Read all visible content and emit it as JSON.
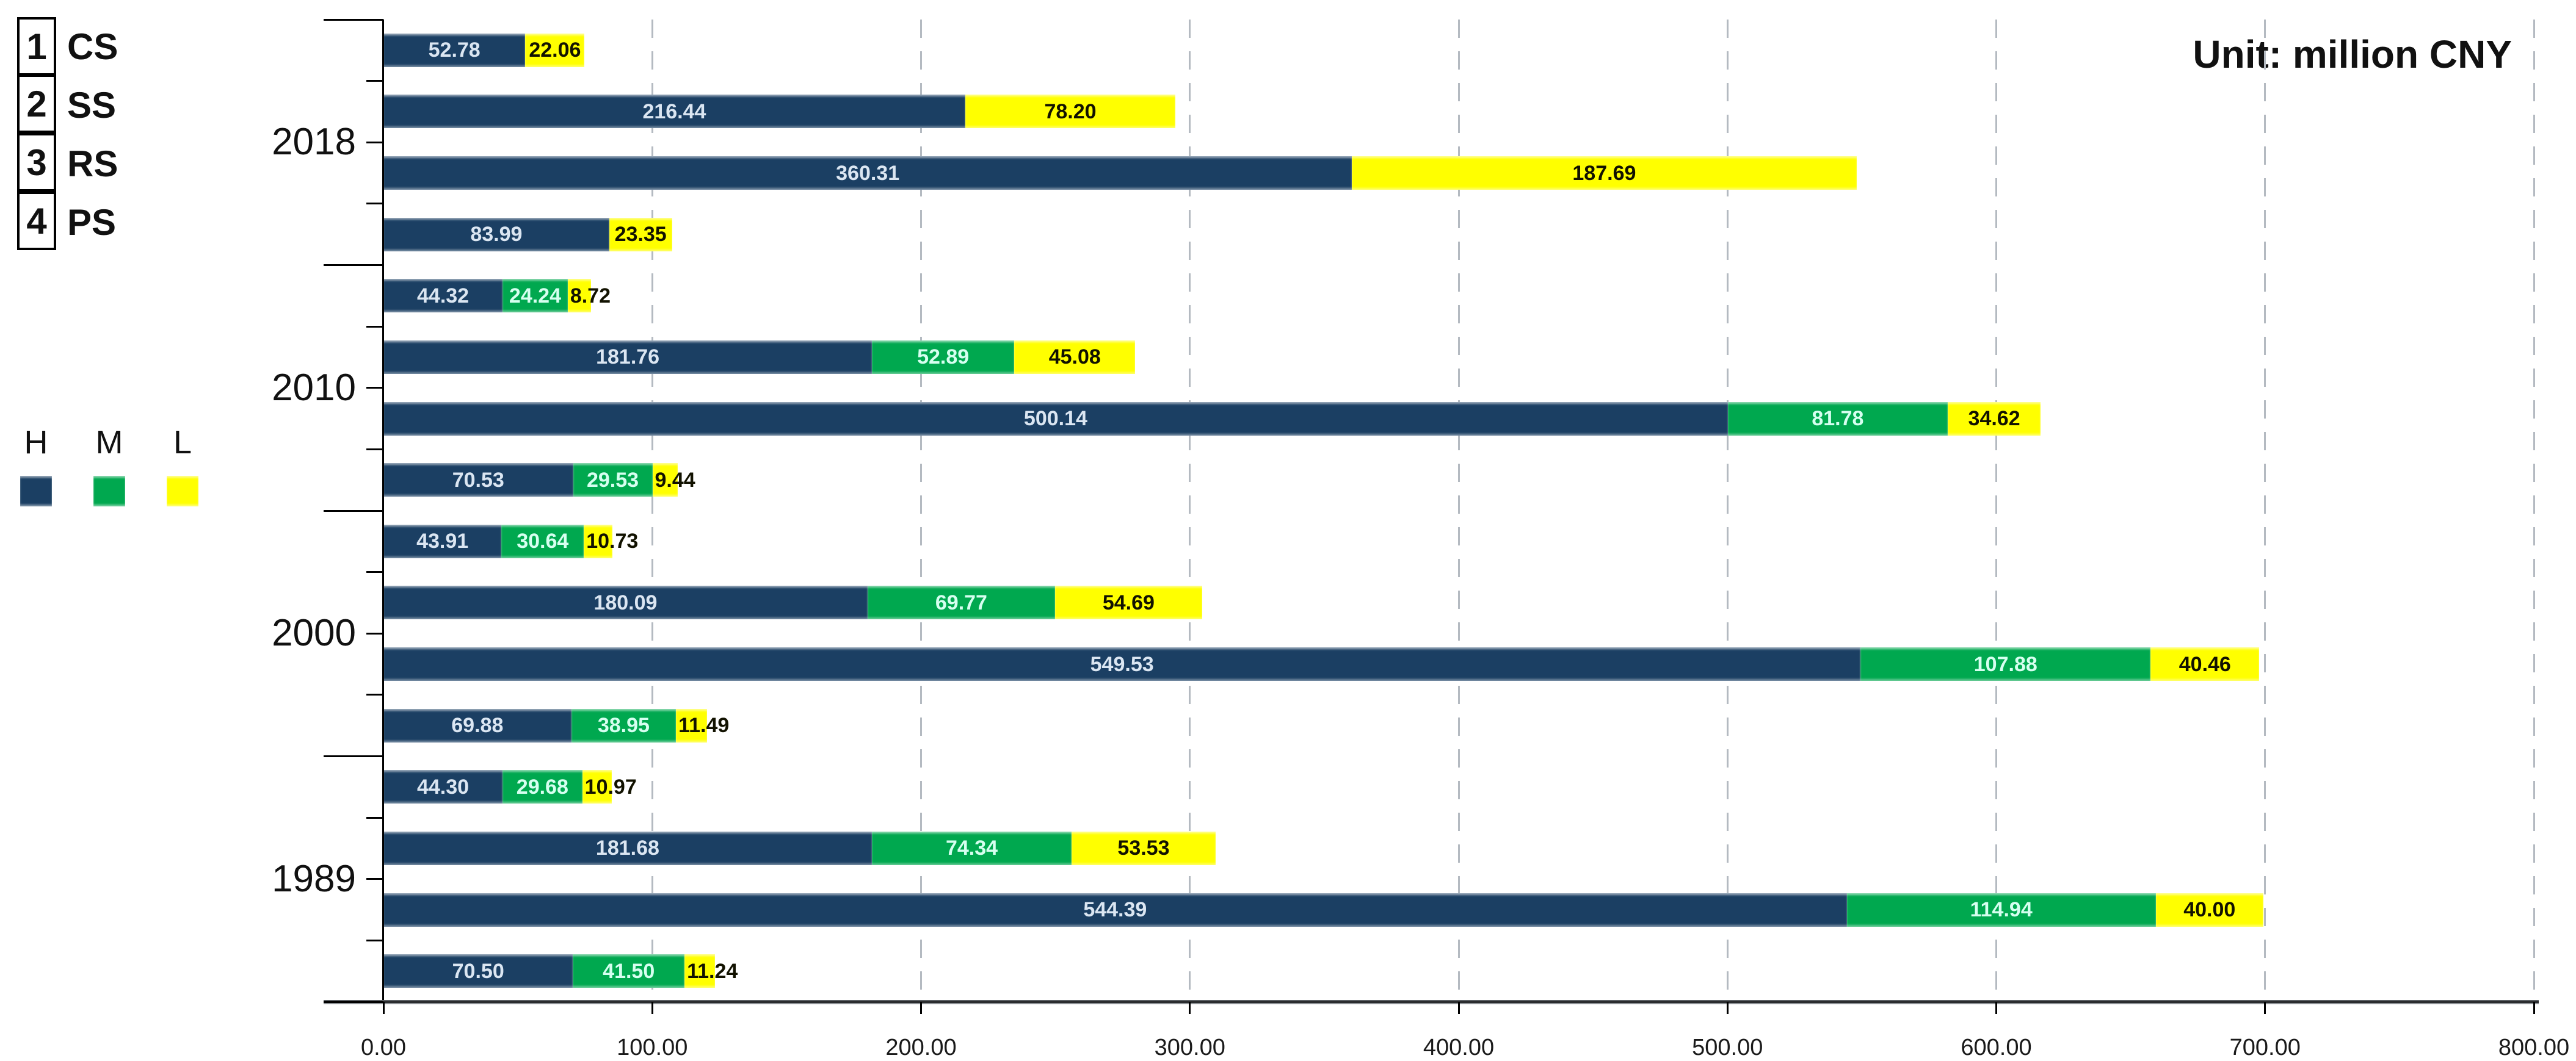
{
  "header": {
    "unit_label": "Unit: million CNY"
  },
  "legend_table": {
    "items": [
      {
        "num": "1",
        "label": "CS"
      },
      {
        "num": "2",
        "label": "SS"
      },
      {
        "num": "3",
        "label": "RS"
      },
      {
        "num": "4",
        "label": "PS"
      }
    ]
  },
  "series_legend": {
    "items": [
      {
        "label": "H",
        "color": "#1b3f63"
      },
      {
        "label": "M",
        "color": "#00a84f"
      },
      {
        "label": "L",
        "color": "#ffff00"
      }
    ]
  },
  "chart_data": {
    "type": "bar",
    "orientation": "horizontal",
    "stacked": true,
    "unit": "million CNY",
    "series_names": [
      "H",
      "M",
      "L"
    ],
    "series_colors": {
      "H": "#1b3f63",
      "M": "#00a84f",
      "L": "#ffff00"
    },
    "value_label_colors": {
      "H": "#dbe6f2",
      "M": "#d6fff0",
      "L": "#121200"
    },
    "xlim": [
      0,
      800
    ],
    "x_ticks": [
      0,
      100,
      200,
      300,
      400,
      500,
      600,
      700,
      800
    ],
    "x_tick_labels": [
      "0.00",
      "100.00",
      "200.00",
      "300.00",
      "400.00",
      "500.00",
      "600.00",
      "700.00",
      "800.00"
    ],
    "grid": "dashed-vertical",
    "legend_position": "left",
    "row_labels": [
      "CS",
      "SS",
      "RS",
      "PS"
    ],
    "groups": [
      {
        "year": "2018",
        "rows": [
          {
            "label": "CS",
            "H": 52.78,
            "M": 0,
            "L": 22.06
          },
          {
            "label": "SS",
            "H": 216.44,
            "M": 0,
            "L": 78.2
          },
          {
            "label": "RS",
            "H": 360.31,
            "M": 0,
            "L": 187.69
          },
          {
            "label": "PS",
            "H": 83.99,
            "M": 0,
            "L": 23.35
          }
        ]
      },
      {
        "year": "2010",
        "rows": [
          {
            "label": "CS",
            "H": 44.32,
            "M": 24.24,
            "L": 8.72
          },
          {
            "label": "SS",
            "H": 181.76,
            "M": 52.89,
            "L": 45.08
          },
          {
            "label": "RS",
            "H": 500.14,
            "M": 81.78,
            "L": 34.62
          },
          {
            "label": "PS",
            "H": 70.53,
            "M": 29.53,
            "L": 9.44
          }
        ]
      },
      {
        "year": "2000",
        "rows": [
          {
            "label": "CS",
            "H": 43.91,
            "M": 30.64,
            "L": 10.73
          },
          {
            "label": "SS",
            "H": 180.09,
            "M": 69.77,
            "L": 54.69
          },
          {
            "label": "RS",
            "H": 549.53,
            "M": 107.88,
            "L": 40.46
          },
          {
            "label": "PS",
            "H": 69.88,
            "M": 38.95,
            "L": 11.49
          }
        ]
      },
      {
        "year": "1989",
        "rows": [
          {
            "label": "CS",
            "H": 44.3,
            "M": 29.68,
            "L": 10.97
          },
          {
            "label": "SS",
            "H": 181.68,
            "M": 74.34,
            "L": 53.53
          },
          {
            "label": "RS",
            "H": 544.39,
            "M": 114.94,
            "L": 40.0
          },
          {
            "label": "PS",
            "H": 70.5,
            "M": 41.5,
            "L": 11.24
          }
        ]
      }
    ]
  }
}
